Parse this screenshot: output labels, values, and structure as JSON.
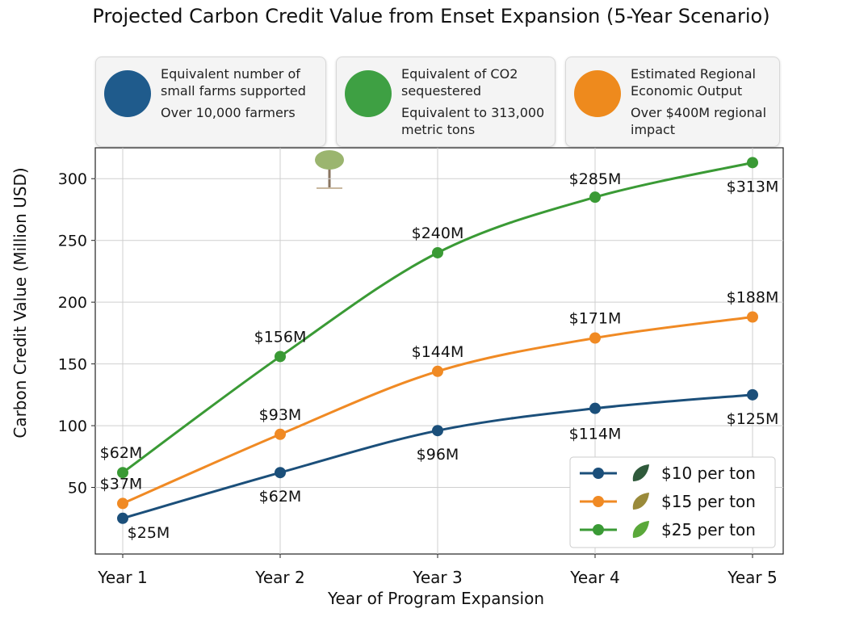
{
  "chart_data": {
    "type": "line",
    "title": "Projected Carbon Credit Value from Enset Expansion (5-Year Scenario)",
    "xlabel": "Year of Program Expansion",
    "ylabel": "Carbon Credit Value (Million USD)",
    "categories": [
      "Year 1",
      "Year 2",
      "Year 3",
      "Year 4",
      "Year 5"
    ],
    "ylim": [
      0,
      325
    ],
    "yticks": [
      50,
      100,
      150,
      200,
      250,
      300
    ],
    "grid": true,
    "legend": "lower right",
    "series": [
      {
        "name": "$10 per ton",
        "color": "#1b4f7a",
        "values": [
          25,
          62,
          96,
          114,
          125
        ],
        "value_labels": [
          "$25M",
          "$62M",
          "$96M",
          "$114M",
          "$125M"
        ]
      },
      {
        "name": "$15 per ton",
        "color": "#f08a24",
        "values": [
          37,
          93,
          144,
          171,
          188
        ],
        "value_labels": [
          "$37M",
          "$93M",
          "$144M",
          "$171M",
          "$188M"
        ]
      },
      {
        "name": "$25 per ton",
        "color": "#3a9a35",
        "values": [
          62,
          156,
          240,
          285,
          313
        ],
        "value_labels": [
          "$62M",
          "$156M",
          "$240M",
          "$285M",
          "$313M"
        ]
      }
    ],
    "cards": [
      {
        "title": "Equivalent number of small farms supported",
        "value": "Over 10,000 farmers",
        "color": "#1f5b8c"
      },
      {
        "title": "Equivalent of CO2 sequestered",
        "value": "Equivalent to 313,000 metric tons",
        "color": "#3ea043"
      },
      {
        "title": "Estimated Regional Economic Output",
        "value": "Over $400M regional impact",
        "color": "#ee8a1d"
      }
    ]
  }
}
